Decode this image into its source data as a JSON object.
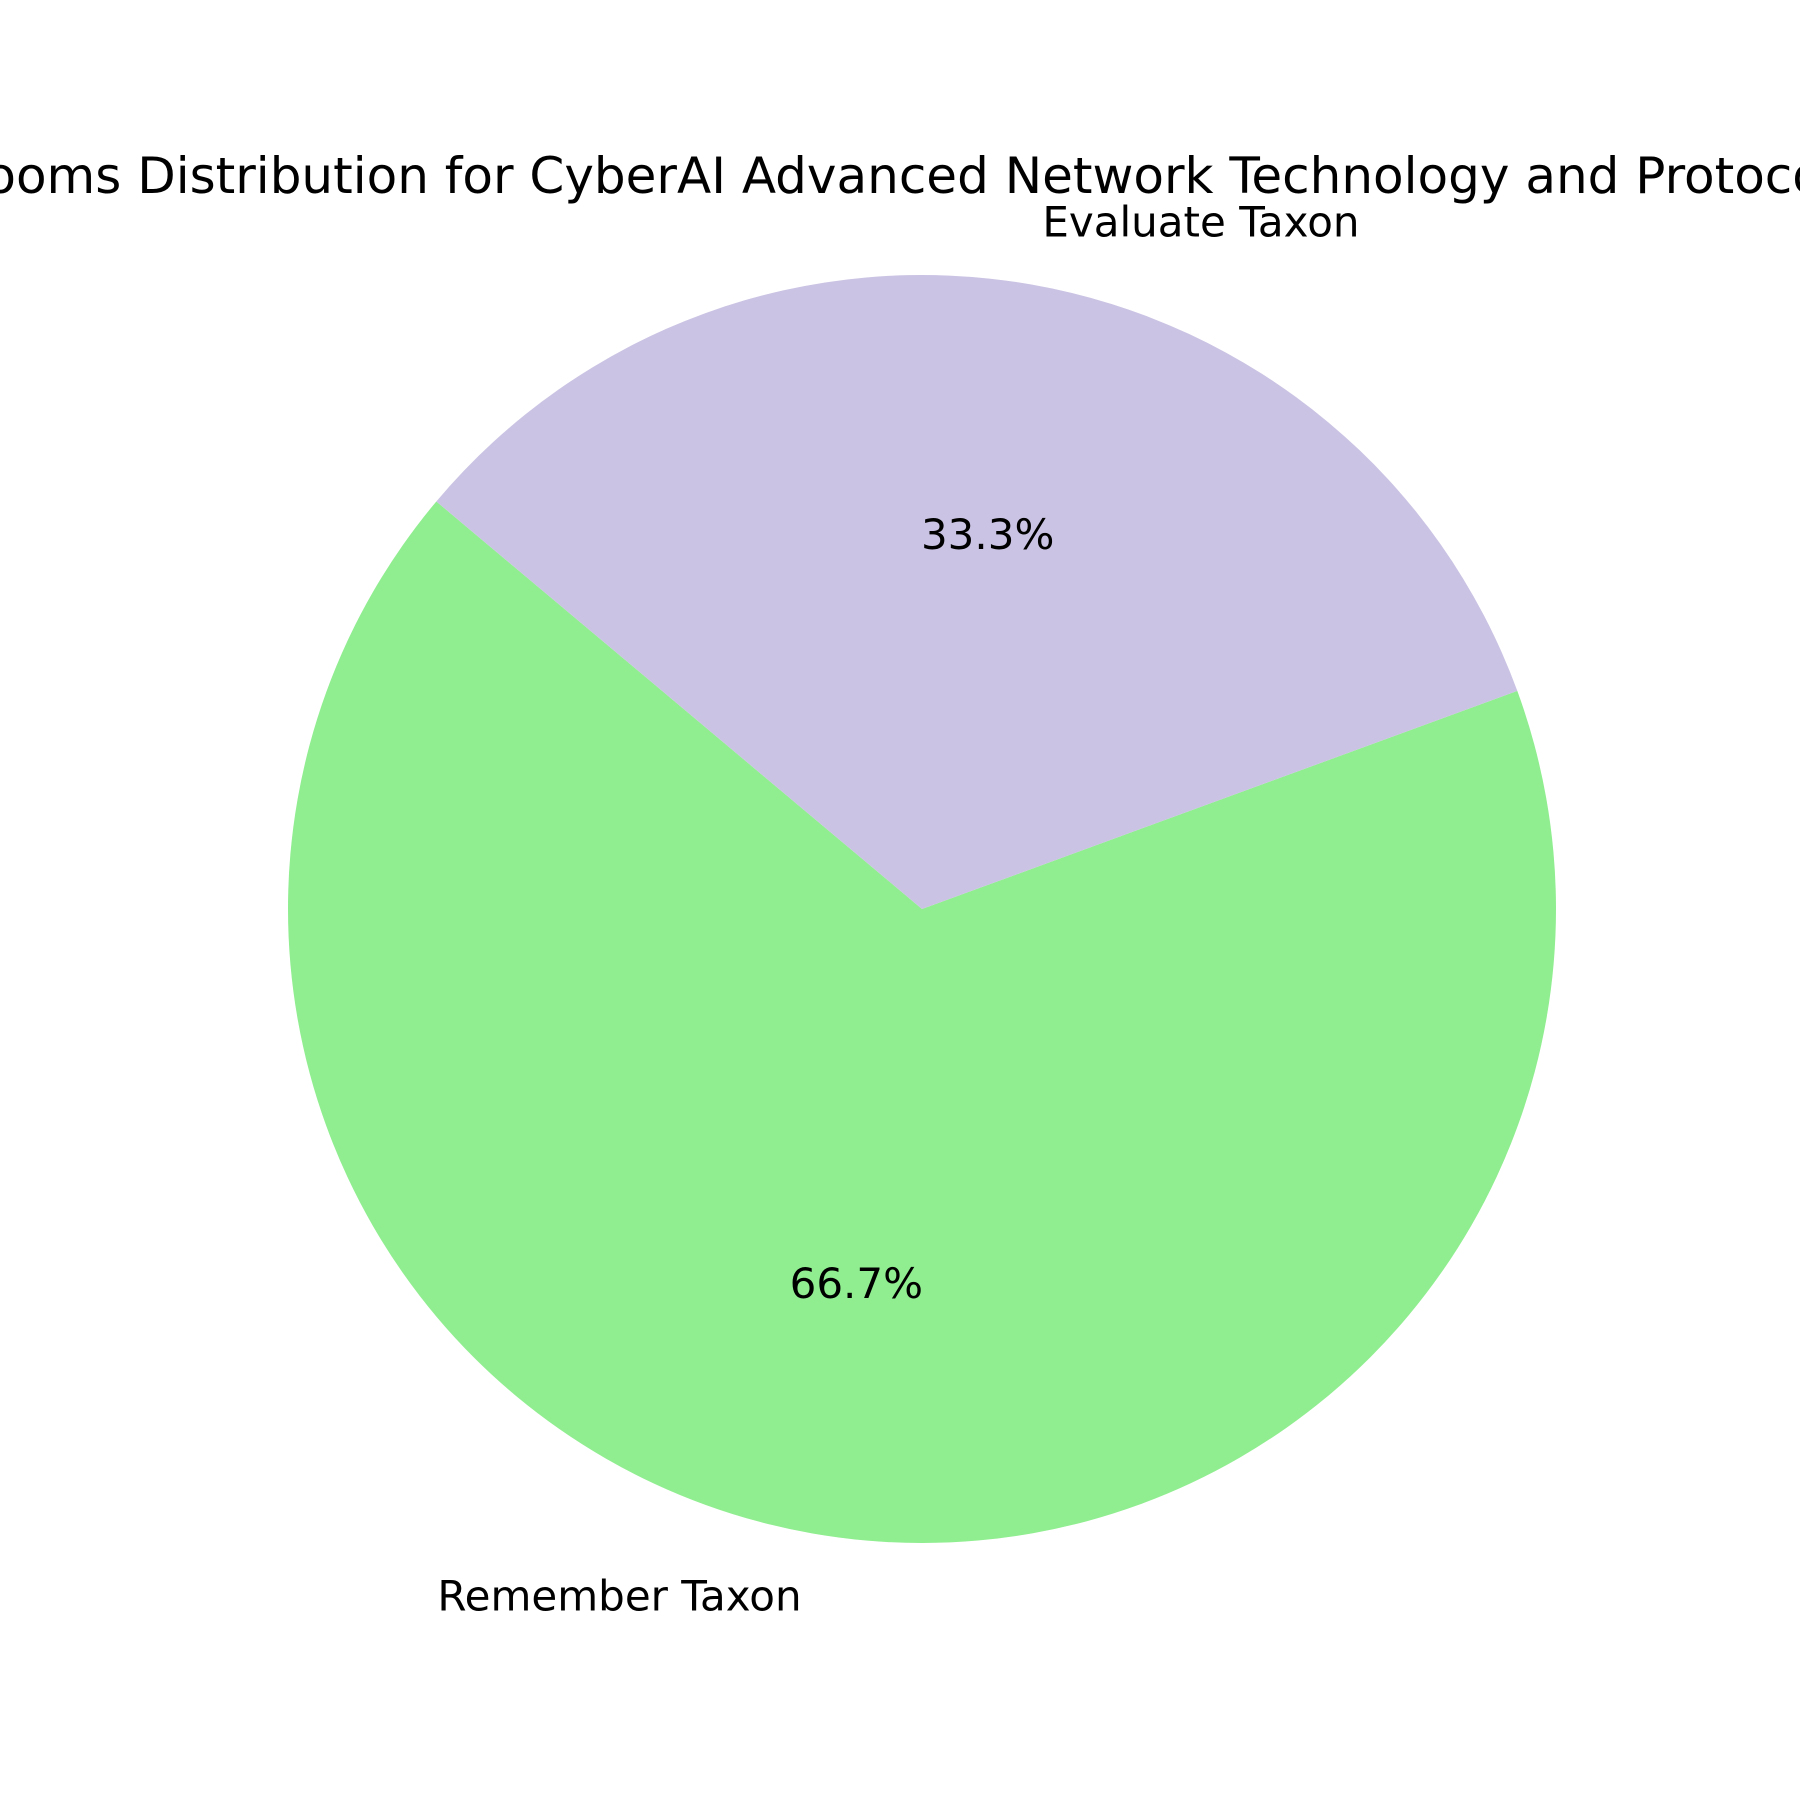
{
  "chart_data": {
    "type": "pie",
    "title": "Blooms Distribution for CyberAI Advanced Network Technology and Protocols",
    "start_angle_deg": 140,
    "counterclockwise": true,
    "label_format": "percent_1dp",
    "slices": [
      {
        "label": "Remember Taxon",
        "value": 66.7,
        "pct_label": "66.7%",
        "color": "#90ee90"
      },
      {
        "label": "Evaluate Taxon",
        "value": 33.3,
        "pct_label": "33.3%",
        "color": "#cbc3e3"
      }
    ]
  }
}
